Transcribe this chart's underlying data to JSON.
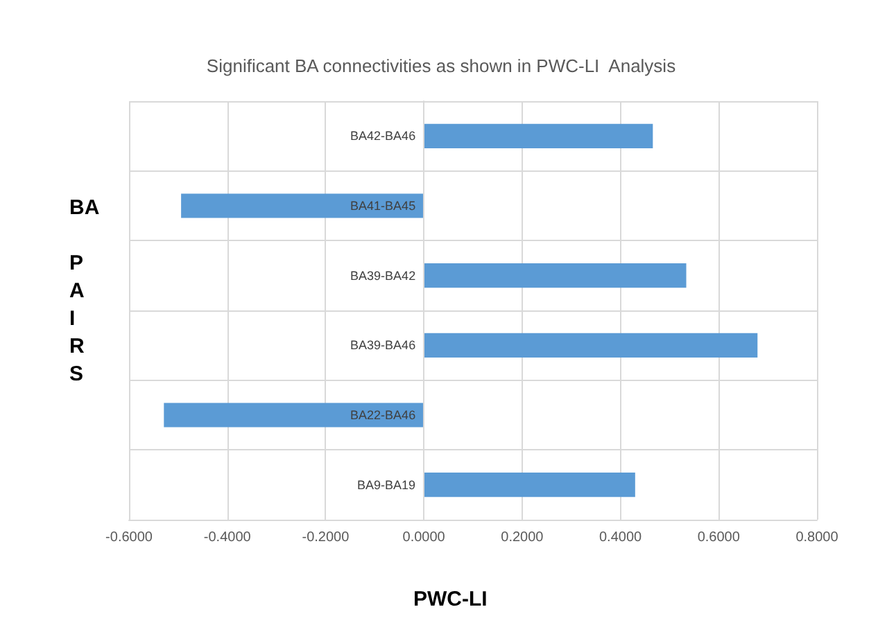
{
  "chart_data": {
    "type": "bar",
    "orientation": "horizontal",
    "title": "Significant BA connectivities as shown in PWC-LI  Analysis",
    "xlabel": "PWC-LI",
    "ylabel": "BA PAIRS",
    "categories": [
      "BA42-BA46",
      "BA41-BA45",
      "BA39-BA42",
      "BA39-BA46",
      "BA22-BA46",
      "BA9-BA19"
    ],
    "values": [
      0.466,
      -0.494,
      0.534,
      0.679,
      -0.529,
      0.43
    ],
    "color": "#5b9bd5",
    "xlim": [
      -0.6,
      0.8
    ],
    "xticks": [
      {
        "value": -0.6,
        "label": "-0.6000"
      },
      {
        "value": -0.4,
        "label": "-0.4000"
      },
      {
        "value": -0.2,
        "label": "-0.2000"
      },
      {
        "value": 0,
        "label": "0.0000"
      },
      {
        "value": 0.2,
        "label": "0.2000"
      },
      {
        "value": 0.4,
        "label": "0.4000"
      },
      {
        "value": 0.6,
        "label": "0.6000"
      },
      {
        "value": 0.8,
        "label": "0.8000"
      }
    ],
    "grid": true
  }
}
